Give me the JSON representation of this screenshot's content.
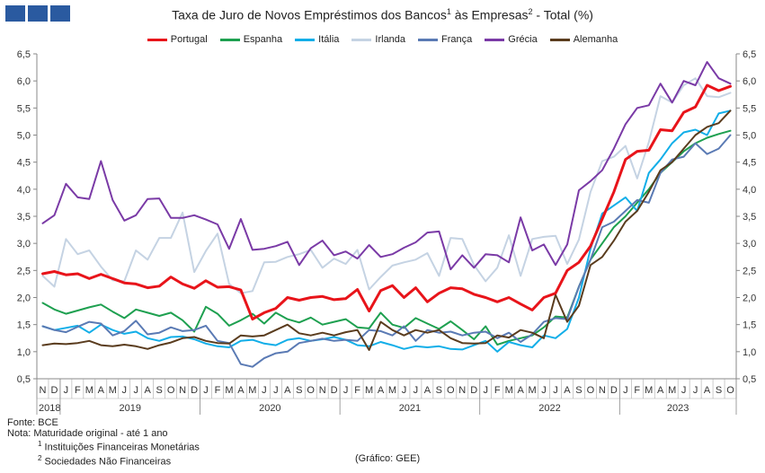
{
  "logo_icon": "gee-logo-icon",
  "title": {
    "main": "Taxa de Juro de Novos Empréstimos dos Bancos",
    "sup1": "1",
    "mid": " às Empresas",
    "sup2": "2",
    "end": " - Total (%)"
  },
  "notes": {
    "fonte": "Fonte: BCE",
    "nota": "Nota: Maturidade original - até 1 ano",
    "n1_sup": "1",
    "n1": "Instituições Financeiras Monetárias",
    "n2_sup": "2",
    "n2": "Sociedades Não Financeiras"
  },
  "credit": "(Gráfico: GEE)",
  "chart_data": {
    "type": "line",
    "title": "Taxa de Juro de Novos Empréstimos dos Bancos¹ às Empresas² - Total (%)",
    "ylim": [
      0.5,
      6.5
    ],
    "yticks": [
      "0,5",
      "1,0",
      "1,5",
      "2,0",
      "2,5",
      "3,0",
      "3,5",
      "4,0",
      "4,5",
      "5,0",
      "5,5",
      "6,0",
      "6,5"
    ],
    "y_axis_both_sides": true,
    "grid": false,
    "legend_position": "top",
    "x": [
      "N",
      "D",
      "J",
      "F",
      "M",
      "A",
      "M",
      "J",
      "J",
      "A",
      "S",
      "O",
      "N",
      "D",
      "J",
      "F",
      "M",
      "A",
      "M",
      "J",
      "J",
      "A",
      "S",
      "O",
      "N",
      "D",
      "J",
      "F",
      "M",
      "A",
      "M",
      "J",
      "J",
      "A",
      "S",
      "O",
      "N",
      "D",
      "J",
      "F",
      "M",
      "A",
      "M",
      "J",
      "J",
      "A",
      "S",
      "O",
      "N",
      "D",
      "J",
      "F",
      "M",
      "A",
      "M",
      "J",
      "J",
      "A",
      "S",
      "O"
    ],
    "years": [
      {
        "label": "2018",
        "start": 0,
        "end": 1
      },
      {
        "label": "2019",
        "start": 2,
        "end": 13
      },
      {
        "label": "2020",
        "start": 14,
        "end": 25
      },
      {
        "label": "2021",
        "start": 26,
        "end": 37
      },
      {
        "label": "2022",
        "start": 38,
        "end": 49
      },
      {
        "label": "2023",
        "start": 50,
        "end": 59
      }
    ],
    "series": [
      {
        "name": "Portugal",
        "color": "#e8141a",
        "width": 3,
        "values": [
          2.44,
          2.48,
          2.42,
          2.44,
          2.35,
          2.43,
          2.35,
          2.27,
          2.25,
          2.18,
          2.21,
          2.38,
          2.25,
          2.17,
          2.31,
          2.19,
          2.2,
          2.14,
          1.6,
          1.72,
          1.8,
          2.0,
          1.95,
          2.0,
          2.02,
          1.96,
          1.98,
          2.15,
          1.75,
          2.13,
          2.22,
          2.0,
          2.18,
          1.92,
          2.08,
          2.18,
          2.16,
          2.06,
          2.0,
          1.92,
          2.0,
          1.88,
          1.77,
          2.0,
          2.08,
          2.5,
          2.65,
          2.95,
          3.45,
          3.95,
          4.55,
          4.7,
          4.72,
          5.1,
          5.08,
          5.42,
          5.52,
          5.92,
          5.82,
          5.9
        ]
      },
      {
        "name": "Espanha",
        "color": "#1ea050",
        "width": 2,
        "values": [
          1.9,
          1.78,
          1.7,
          1.76,
          1.82,
          1.87,
          1.74,
          1.62,
          1.78,
          1.72,
          1.66,
          1.72,
          1.58,
          1.37,
          1.83,
          1.7,
          1.48,
          1.58,
          1.7,
          1.52,
          1.72,
          1.6,
          1.54,
          1.63,
          1.5,
          1.55,
          1.6,
          1.45,
          1.43,
          1.72,
          1.5,
          1.44,
          1.62,
          1.52,
          1.42,
          1.56,
          1.4,
          1.23,
          1.47,
          1.13,
          1.2,
          1.25,
          1.3,
          1.45,
          1.65,
          1.63,
          2.2,
          2.7,
          3.0,
          3.3,
          3.5,
          3.75,
          4.0,
          4.3,
          4.5,
          4.7,
          4.85,
          4.95,
          5.02,
          5.08
        ]
      },
      {
        "name": "Itália",
        "color": "#12aee8",
        "width": 2,
        "values": [
          1.47,
          1.4,
          1.44,
          1.48,
          1.35,
          1.5,
          1.4,
          1.33,
          1.37,
          1.25,
          1.2,
          1.27,
          1.28,
          1.23,
          1.15,
          1.1,
          1.08,
          1.2,
          1.22,
          1.15,
          1.12,
          1.22,
          1.25,
          1.2,
          1.23,
          1.27,
          1.22,
          1.12,
          1.1,
          1.18,
          1.12,
          1.05,
          1.1,
          1.08,
          1.1,
          1.05,
          1.04,
          1.12,
          1.2,
          1.0,
          1.18,
          1.12,
          1.08,
          1.3,
          1.25,
          1.42,
          2.0,
          2.9,
          3.55,
          3.7,
          3.85,
          3.6,
          4.3,
          4.55,
          4.85,
          5.05,
          5.1,
          5.0,
          5.4,
          5.45
        ]
      },
      {
        "name": "Irlanda",
        "color": "#c5d3e3",
        "width": 2,
        "values": [
          2.4,
          2.2,
          3.08,
          2.8,
          2.87,
          2.57,
          2.32,
          2.3,
          2.87,
          2.7,
          3.1,
          3.1,
          3.57,
          2.47,
          2.86,
          3.18,
          2.25,
          2.08,
          2.12,
          2.65,
          2.66,
          2.75,
          2.8,
          2.88,
          2.55,
          2.72,
          2.62,
          2.88,
          2.15,
          2.38,
          2.59,
          2.65,
          2.7,
          2.82,
          2.4,
          3.1,
          3.08,
          2.6,
          2.3,
          2.55,
          3.15,
          2.4,
          3.08,
          3.12,
          3.14,
          2.62,
          3.07,
          3.95,
          4.52,
          4.6,
          4.8,
          4.2,
          4.87,
          5.72,
          5.6,
          5.92,
          6.05,
          5.72,
          5.7,
          5.78
        ]
      },
      {
        "name": "França",
        "color": "#5a7ab4",
        "width": 2,
        "values": [
          1.47,
          1.4,
          1.36,
          1.46,
          1.55,
          1.52,
          1.3,
          1.38,
          1.57,
          1.32,
          1.35,
          1.45,
          1.38,
          1.4,
          1.48,
          1.2,
          1.16,
          0.77,
          0.72,
          0.88,
          0.97,
          1.0,
          1.16,
          1.2,
          1.24,
          1.2,
          1.22,
          1.2,
          1.4,
          1.38,
          1.3,
          1.47,
          1.2,
          1.4,
          1.35,
          1.37,
          1.3,
          1.35,
          1.37,
          1.25,
          1.35,
          1.18,
          1.32,
          1.55,
          1.62,
          1.6,
          2.2,
          2.7,
          3.3,
          3.4,
          3.6,
          3.8,
          3.75,
          4.3,
          4.55,
          4.6,
          4.85,
          4.65,
          4.75,
          5.0
        ]
      },
      {
        "name": "Grécia",
        "color": "#7a3aa6",
        "width": 2,
        "values": [
          3.37,
          3.52,
          4.1,
          3.85,
          3.82,
          4.52,
          3.8,
          3.42,
          3.52,
          3.82,
          3.83,
          3.47,
          3.47,
          3.52,
          3.44,
          3.35,
          2.9,
          3.45,
          2.88,
          2.9,
          2.95,
          3.03,
          2.6,
          2.91,
          3.05,
          2.78,
          2.85,
          2.72,
          2.97,
          2.75,
          2.8,
          2.92,
          3.02,
          3.2,
          3.22,
          2.52,
          2.78,
          2.55,
          2.8,
          2.78,
          2.65,
          3.48,
          2.87,
          2.98,
          2.6,
          2.98,
          3.98,
          4.15,
          4.35,
          4.75,
          5.2,
          5.5,
          5.55,
          5.95,
          5.6,
          6.0,
          5.92,
          6.35,
          6.05,
          5.95
        ]
      },
      {
        "name": "Alemanha",
        "color": "#5a3c1e",
        "width": 2,
        "values": [
          1.12,
          1.15,
          1.14,
          1.16,
          1.2,
          1.12,
          1.1,
          1.13,
          1.1,
          1.05,
          1.12,
          1.17,
          1.25,
          1.27,
          1.2,
          1.16,
          1.15,
          1.3,
          1.28,
          1.3,
          1.4,
          1.5,
          1.34,
          1.3,
          1.35,
          1.3,
          1.36,
          1.4,
          1.03,
          1.55,
          1.4,
          1.3,
          1.4,
          1.35,
          1.4,
          1.25,
          1.16,
          1.15,
          1.16,
          1.3,
          1.26,
          1.4,
          1.35,
          1.25,
          2.05,
          1.55,
          1.85,
          2.6,
          2.75,
          3.05,
          3.4,
          3.6,
          3.95,
          4.35,
          4.5,
          4.75,
          5.0,
          5.15,
          5.22,
          5.45
        ]
      }
    ]
  }
}
